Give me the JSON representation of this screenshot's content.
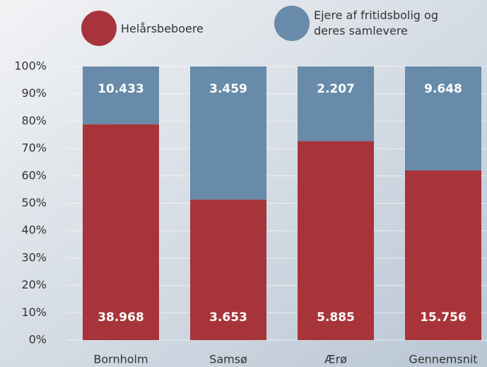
{
  "chart_data": {
    "type": "bar",
    "stacked": "percent",
    "categories": [
      "Bornholm",
      "Samsø",
      "Ærø",
      "Gennemsnit"
    ],
    "series": [
      {
        "name": "Helårsbeboere",
        "color": "#a8343b",
        "values": [
          38968,
          3653,
          5885,
          15756
        ],
        "value_labels": [
          "38.968",
          "3.653",
          "5.885",
          "15.756"
        ]
      },
      {
        "name": "Ejere af fritidsbolig og deres samlevere",
        "color": "#678ba8",
        "values": [
          10433,
          3459,
          2207,
          9648
        ],
        "value_labels": [
          "10.433",
          "3.459",
          "2.207",
          "9.648"
        ]
      }
    ],
    "ylim": [
      0,
      100
    ],
    "yticks": [
      {
        "value": 0,
        "label": "0%"
      },
      {
        "value": 10,
        "label": "10%"
      },
      {
        "value": 20,
        "label": "20%"
      },
      {
        "value": 30,
        "label": "30%"
      },
      {
        "value": 40,
        "label": "40%"
      },
      {
        "value": 50,
        "label": "50%"
      },
      {
        "value": 60,
        "label": "60%"
      },
      {
        "value": 70,
        "label": "70%"
      },
      {
        "value": 80,
        "label": "80%"
      },
      {
        "value": 90,
        "label": "90%"
      },
      {
        "value": 100,
        "label": "100%"
      }
    ],
    "grid": true
  }
}
